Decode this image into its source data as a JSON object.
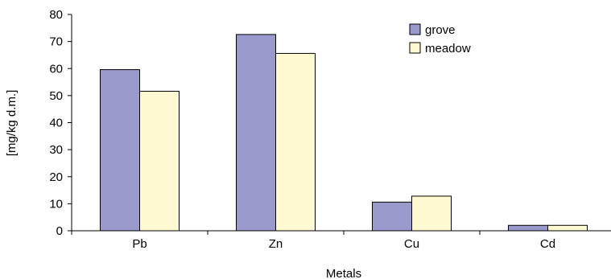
{
  "chart_data": {
    "type": "bar",
    "title": "",
    "xlabel": "Metals",
    "ylabel": "[mg/kg d.m.]",
    "categories": [
      "Pb",
      "Zn",
      "Cu",
      "Cd"
    ],
    "series": [
      {
        "name": "grove",
        "values": [
          59.6,
          72.6,
          10.6,
          2.0
        ],
        "color": "#9999cc"
      },
      {
        "name": "meadow",
        "values": [
          51.6,
          65.6,
          12.8,
          2.0
        ],
        "color": "#fffad2"
      }
    ],
    "ylim": [
      0,
      80
    ],
    "yticks": [
      0,
      10,
      20,
      30,
      40,
      50,
      60,
      70,
      80
    ],
    "grid": false,
    "legend_position": "top-right"
  }
}
